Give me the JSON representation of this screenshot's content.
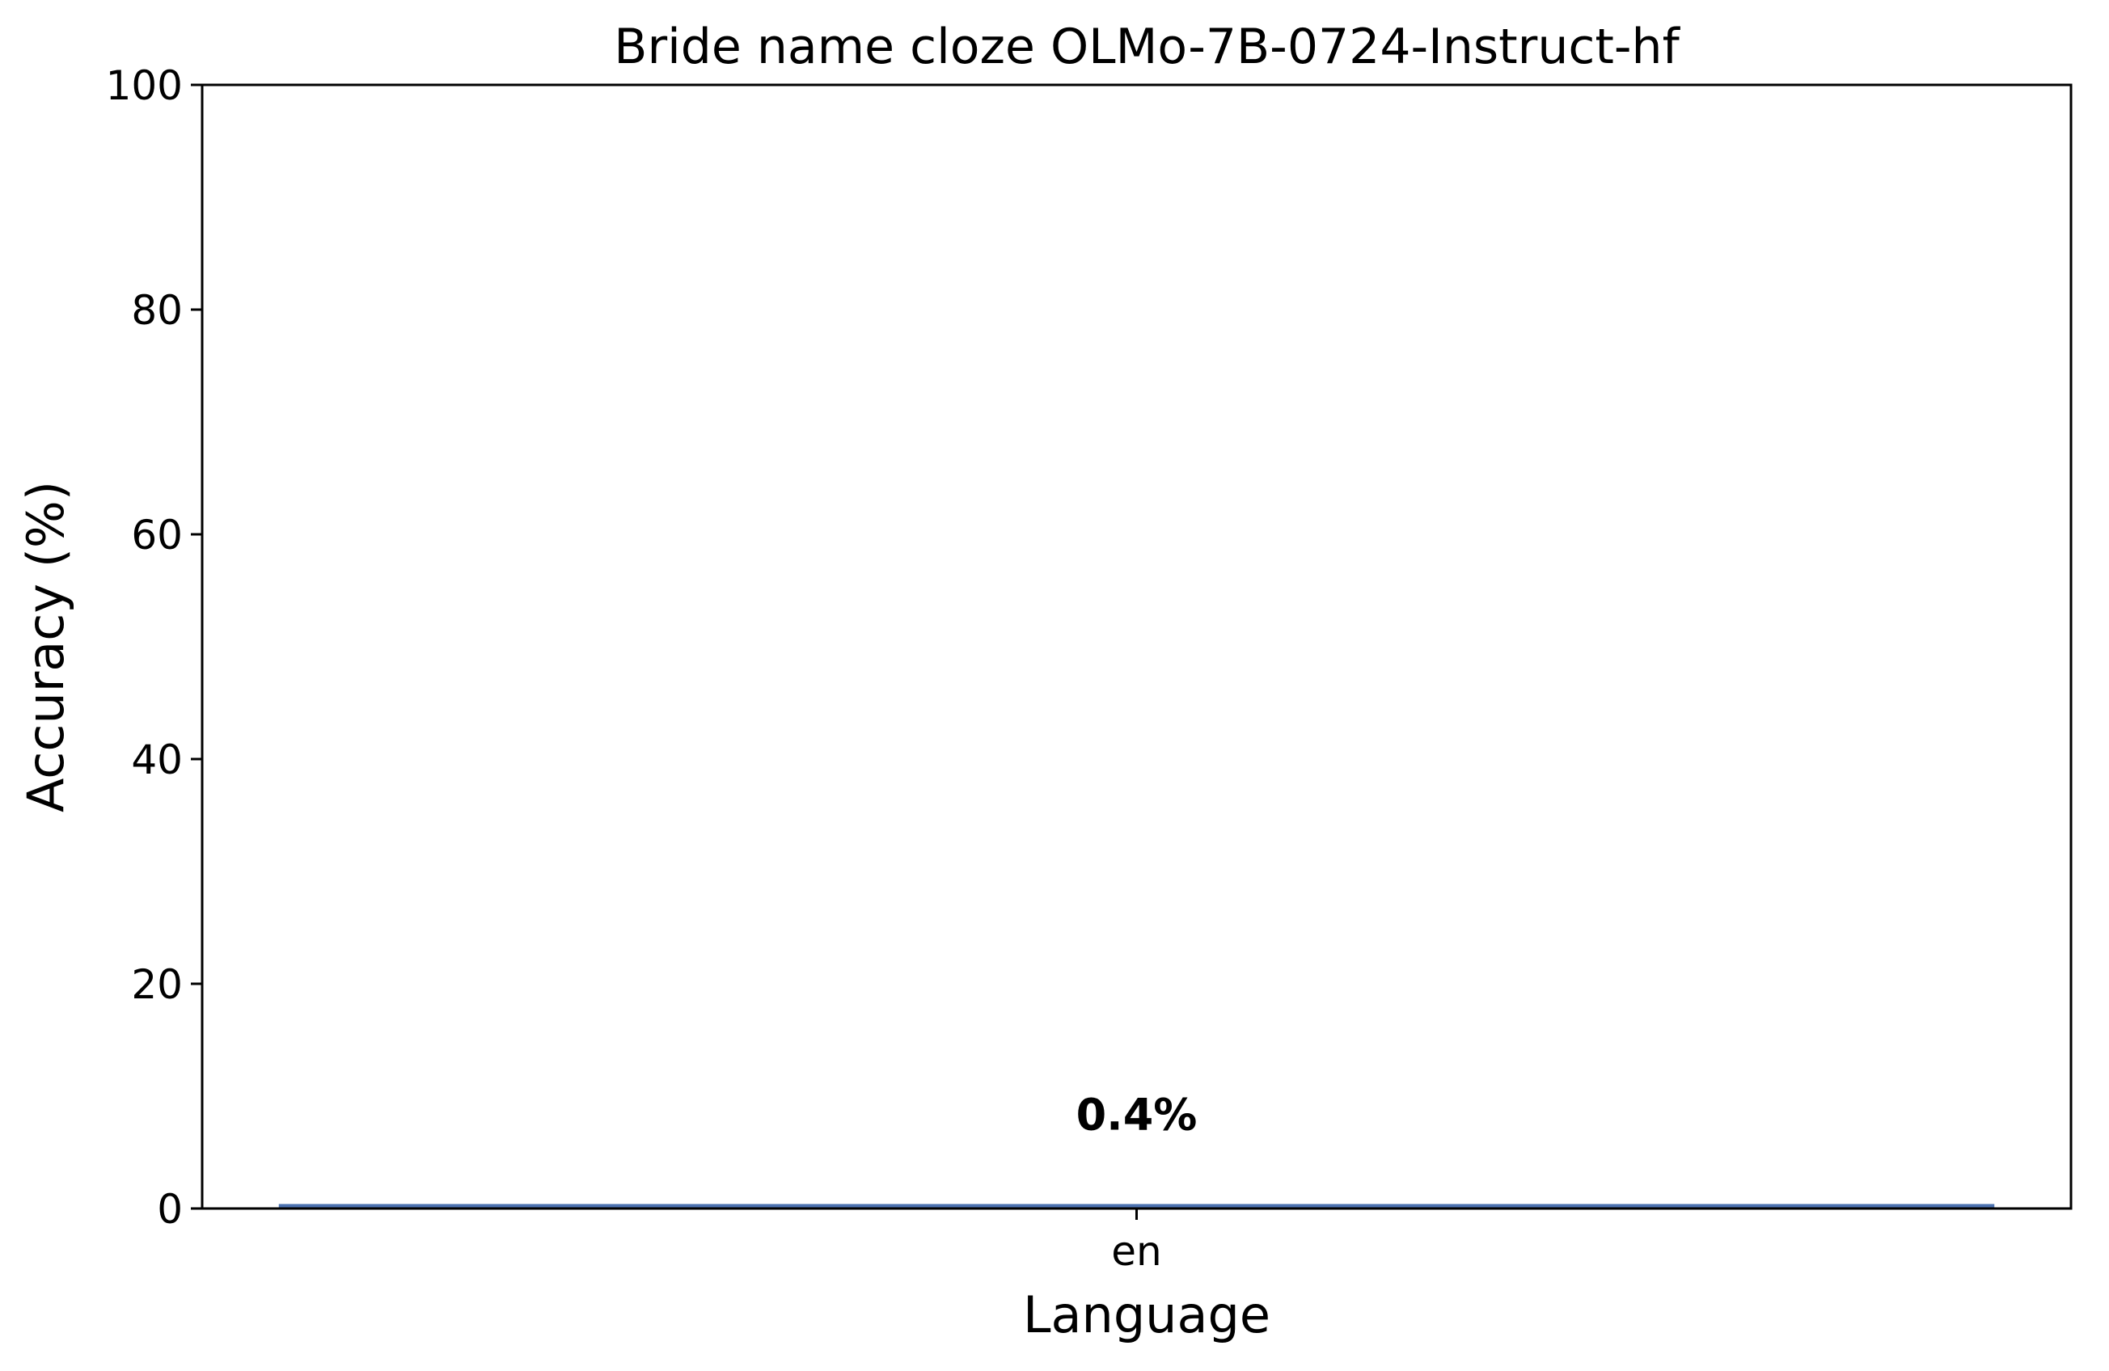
{
  "chart_data": {
    "type": "bar",
    "title": "Bride name cloze OLMo-7B-0724-Instruct-hf",
    "xlabel": "Language",
    "ylabel": "Accuracy (%)",
    "categories": [
      "en"
    ],
    "values": [
      0.4
    ],
    "data_labels": [
      "0.4%"
    ],
    "ylim": [
      0,
      100
    ],
    "yticks": [
      0,
      20,
      40,
      60,
      80,
      100
    ],
    "grid": false,
    "legend": "none",
    "bar_color": "#4c72b0"
  }
}
